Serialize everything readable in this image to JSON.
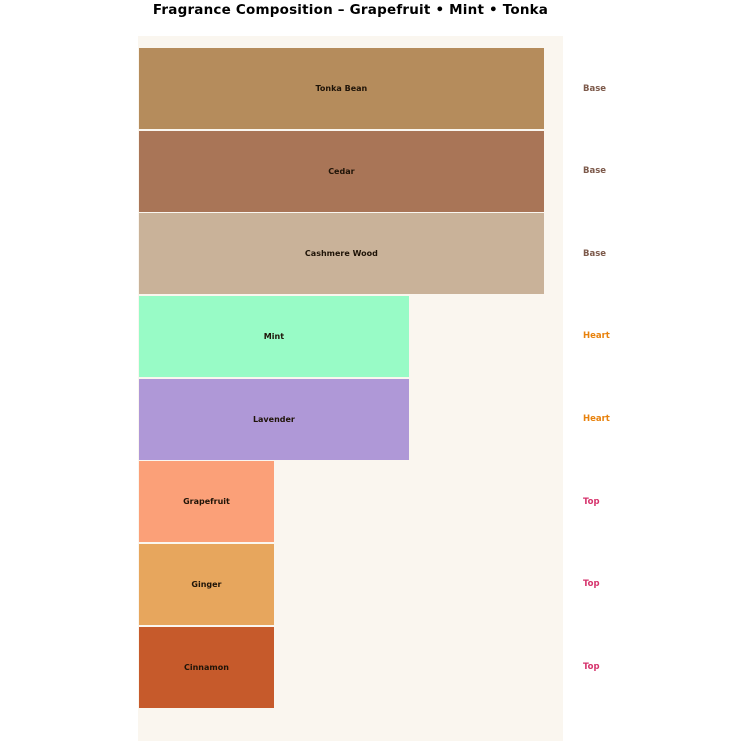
{
  "page": {
    "background": "#ffffff"
  },
  "chart_data": {
    "type": "bar",
    "orientation": "horizontal",
    "title": "Fragrance Composition – Grapefruit • Mint • Tonka",
    "plot_background": "#FAF6EF",
    "xlim": [
      0,
      3.15
    ],
    "grid": false,
    "axes_visible": false,
    "legend_position": "none",
    "bars": [
      {
        "label": "Tonka Bean",
        "value": 3,
        "color": "#B58C5C",
        "category": "Base"
      },
      {
        "label": "Cedar",
        "value": 3,
        "color": "#A97557",
        "category": "Base"
      },
      {
        "label": "Cashmere Wood",
        "value": 3,
        "color": "#C9B299",
        "category": "Base"
      },
      {
        "label": "Mint",
        "value": 2,
        "color": "#98FBC6",
        "category": "Heart"
      },
      {
        "label": "Lavender",
        "value": 2,
        "color": "#AF98D7",
        "category": "Heart"
      },
      {
        "label": "Grapefruit",
        "value": 1,
        "color": "#FBA078",
        "category": "Top"
      },
      {
        "label": "Ginger",
        "value": 1,
        "color": "#E7A65D",
        "category": "Top"
      },
      {
        "label": "Cinnamon",
        "value": 1,
        "color": "#C65A2B",
        "category": "Top"
      }
    ],
    "category_colors": {
      "Base": "#7D5A4B",
      "Heart": "#E8820D",
      "Top": "#D6336C"
    },
    "bar_label_color": "#1f1408",
    "title_color": "#000000"
  }
}
